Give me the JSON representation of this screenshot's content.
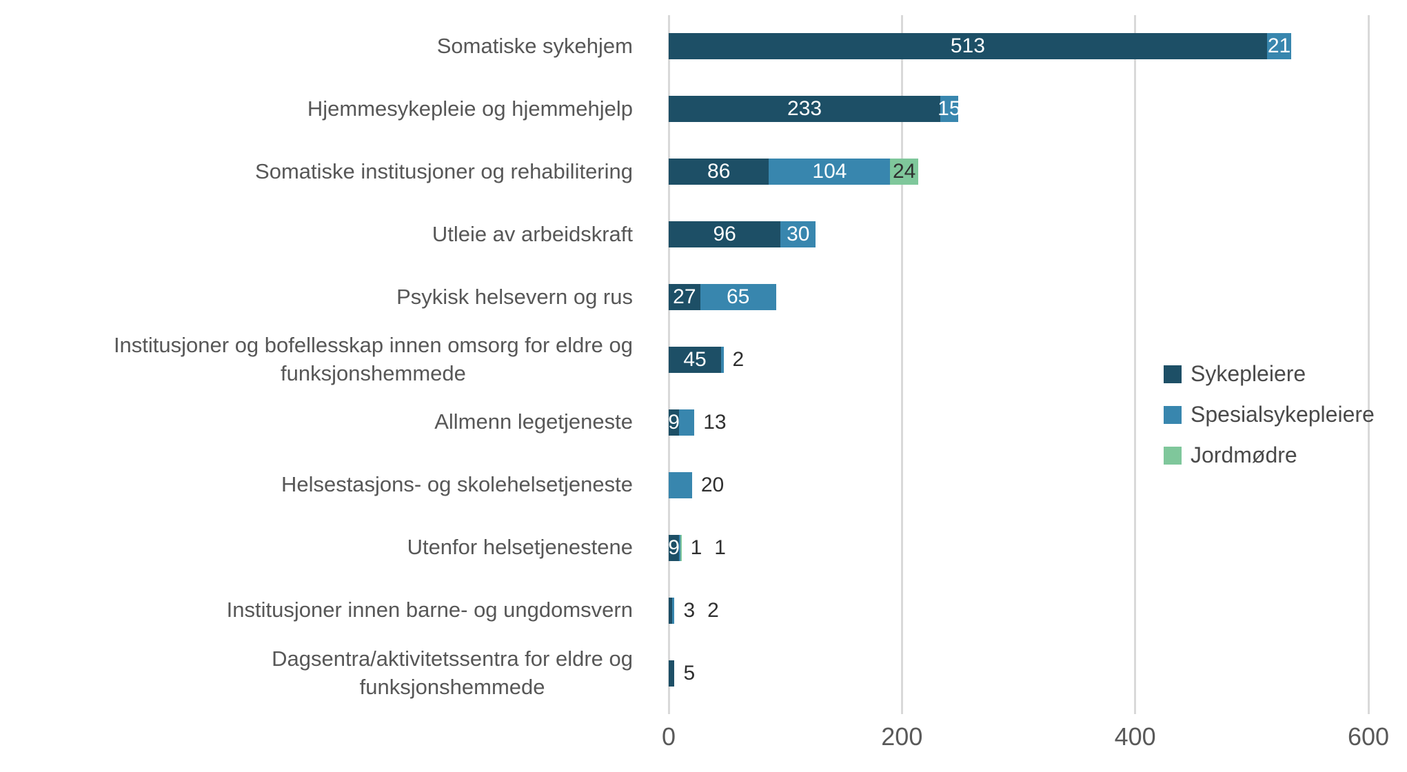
{
  "chart_data": {
    "type": "bar",
    "orientation": "horizontal",
    "stacked": true,
    "title": "",
    "xlabel": "",
    "ylabel": "",
    "xlim": [
      0,
      600
    ],
    "xticks": [
      0,
      200,
      400,
      600
    ],
    "grid": true,
    "legend_position": "right",
    "categories": [
      "Somatiske sykehjem",
      "Hjemmesykepleie og hjemmehjelp",
      "Somatiske institusjoner og rehabilitering",
      "Utleie av arbeidskraft",
      "Psykisk helsevern og rus",
      "Institusjoner og bofellesskap innen omsorg for eldre og\nfunksjonshemmede",
      "Allmenn legetjeneste",
      "Helsestasjons- og skolehelsetjeneste",
      "Utenfor helsetjenestene",
      "Institusjoner innen barne- og ungdomsvern",
      "Dagsentra/aktivitetssentra for eldre og\nfunksjonshemmede"
    ],
    "series": [
      {
        "name": "Sykepleiere",
        "color": "#1d4f66",
        "values": [
          513,
          233,
          86,
          96,
          27,
          45,
          9,
          0,
          9,
          3,
          5
        ]
      },
      {
        "name": "Spesialsykepleiere",
        "color": "#3886ae",
        "values": [
          21,
          15,
          104,
          30,
          65,
          2,
          13,
          20,
          1,
          2,
          0
        ]
      },
      {
        "name": "Jordmødre",
        "color": "#7fc79b",
        "values": [
          0,
          0,
          24,
          0,
          0,
          0,
          0,
          0,
          1,
          0,
          0
        ]
      }
    ],
    "label_modes": [
      [
        "in",
        "in",
        "none"
      ],
      [
        "in",
        "in",
        "none"
      ],
      [
        "in",
        "in",
        "in-dark"
      ],
      [
        "in",
        "in",
        "none"
      ],
      [
        "in",
        "in",
        "none"
      ],
      [
        "in",
        "out",
        "none"
      ],
      [
        "in",
        "out",
        "none"
      ],
      [
        "in",
        "out",
        "none"
      ],
      [
        "in",
        "out",
        "out"
      ],
      [
        "out",
        "out",
        "none"
      ],
      [
        "out",
        "none",
        "none"
      ]
    ]
  },
  "styles": {
    "grid_color": "#d9d9d9",
    "axis_text_color": "#595959",
    "category_text_color": "#575757",
    "label_inside_color": "#ffffff",
    "label_outside_color": "#2f2f2f"
  }
}
